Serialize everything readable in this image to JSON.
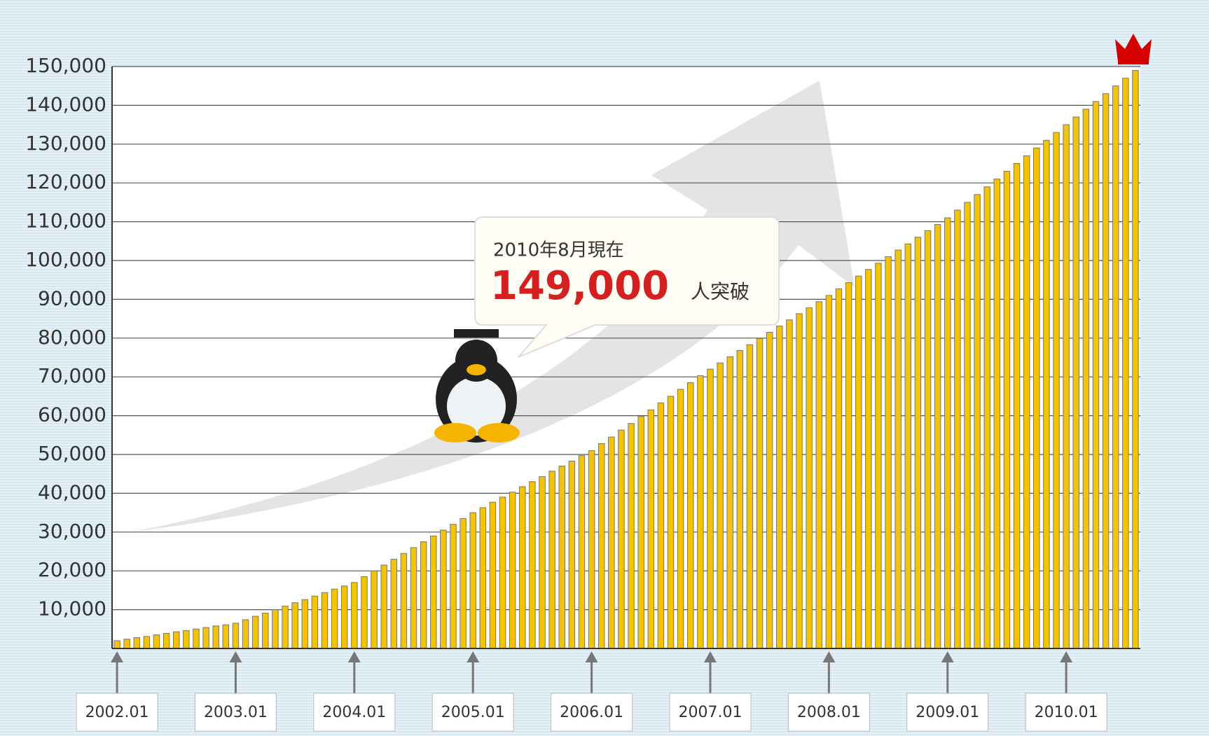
{
  "chart_data": {
    "type": "bar",
    "categories": [
      "2002.01",
      null,
      null,
      null,
      null,
      null,
      null,
      null,
      null,
      null,
      null,
      null,
      "2003.01",
      null,
      null,
      null,
      null,
      null,
      null,
      null,
      null,
      null,
      null,
      null,
      "2004.01",
      null,
      null,
      null,
      null,
      null,
      null,
      null,
      null,
      null,
      null,
      null,
      "2005.01",
      null,
      null,
      null,
      null,
      null,
      null,
      null,
      null,
      null,
      null,
      null,
      "2006.01",
      null,
      null,
      null,
      null,
      null,
      null,
      null,
      null,
      null,
      null,
      null,
      "2007.01",
      null,
      null,
      null,
      null,
      null,
      null,
      null,
      null,
      null,
      null,
      null,
      "2008.01",
      null,
      null,
      null,
      null,
      null,
      null,
      null,
      null,
      null,
      null,
      null,
      "2009.01",
      null,
      null,
      null,
      null,
      null,
      null,
      null,
      null,
      null,
      null,
      null,
      "2010.01",
      null,
      null,
      null,
      null,
      null,
      null,
      null
    ],
    "values": [
      2000,
      2400,
      2800,
      3100,
      3500,
      3900,
      4300,
      4600,
      5000,
      5400,
      5800,
      6100,
      6500,
      7400,
      8300,
      9100,
      10000,
      10900,
      11800,
      12600,
      13500,
      14400,
      15300,
      16100,
      17000,
      18500,
      20000,
      21500,
      23000,
      24500,
      26000,
      27500,
      29000,
      30500,
      32000,
      33500,
      35000,
      36300,
      37700,
      39000,
      40300,
      41700,
      43000,
      44300,
      45700,
      47000,
      48300,
      49700,
      51000,
      52800,
      54500,
      56300,
      58000,
      59800,
      61500,
      63300,
      65000,
      66800,
      68500,
      70300,
      72000,
      73600,
      75200,
      76800,
      78300,
      79900,
      81500,
      83100,
      84700,
      86300,
      87800,
      89400,
      91000,
      92700,
      94300,
      96000,
      97700,
      99300,
      101000,
      102700,
      104300,
      106000,
      107700,
      109300,
      111000,
      113000,
      115000,
      117000,
      119000,
      121000,
      123000,
      125000,
      127000,
      129000,
      131000,
      133000,
      135000,
      137000,
      139000,
      141000,
      143000,
      145000,
      147000,
      149000
    ],
    "color": "#f5c400",
    "ylim": [
      0,
      150000
    ],
    "yticks": [
      {
        "value": 10000,
        "label": "10,000"
      },
      {
        "value": 20000,
        "label": "20,000"
      },
      {
        "value": 30000,
        "label": "30,000"
      },
      {
        "value": 40000,
        "label": "40,000"
      },
      {
        "value": 50000,
        "label": "50,000"
      },
      {
        "value": 60000,
        "label": "60,000"
      },
      {
        "value": 70000,
        "label": "70,000"
      },
      {
        "value": 80000,
        "label": "80,000"
      },
      {
        "value": 90000,
        "label": "90,000"
      },
      {
        "value": 100000,
        "label": "100,000"
      },
      {
        "value": 110000,
        "label": "110,000"
      },
      {
        "value": 120000,
        "label": "120,000"
      },
      {
        "value": 130000,
        "label": "130,000"
      },
      {
        "value": 140000,
        "label": "140,000"
      },
      {
        "value": 150000,
        "label": "150,000"
      }
    ],
    "grid": true,
    "annotation": {
      "date": "2010年8月現在",
      "number": "149,000",
      "suffix": "人突破"
    }
  }
}
